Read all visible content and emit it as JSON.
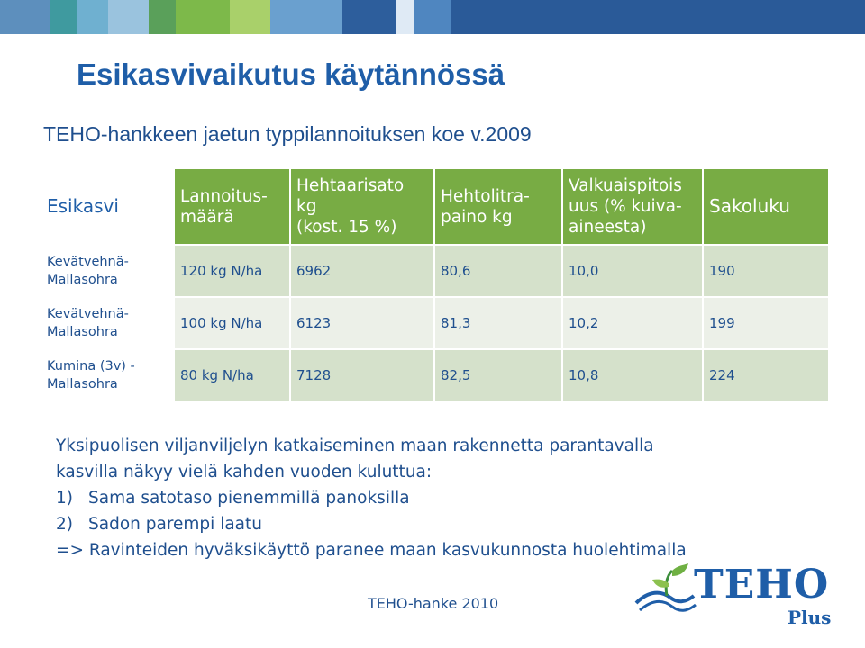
{
  "slide": {
    "title": "Esikasvivaikutus käytännössä",
    "subtitle": "TEHO-hankkeen jaetun typpilannoituksen koe v.2009"
  },
  "table": {
    "headers": [
      {
        "lines": [
          "Esikasvi"
        ]
      },
      {
        "lines": [
          "Lannoitus-",
          "määrä"
        ]
      },
      {
        "lines": [
          "Hehtaarisato",
          "kg",
          "(kost. 15 %)"
        ]
      },
      {
        "lines": [
          "Hehtolitra-",
          "paino kg"
        ]
      },
      {
        "lines": [
          "Valkuaispitois",
          "uus (% kuiva-",
          "aineesta)"
        ]
      },
      {
        "lines": [
          "Sakoluku"
        ]
      }
    ],
    "rows": [
      {
        "esikasvi": [
          "Kevätvehnä-",
          "Mallasohra"
        ],
        "lannoitus": "120 kg N/ha",
        "sato": "6962",
        "hehtolitrapaino": "80,6",
        "valkuainen": "10,0",
        "sakoluku": "190"
      },
      {
        "esikasvi": [
          "Kevätvehnä-",
          "Mallasohra"
        ],
        "lannoitus": "100 kg N/ha",
        "sato": "6123",
        "hehtolitrapaino": "81,3",
        "valkuainen": "10,2",
        "sakoluku": "199"
      },
      {
        "esikasvi": [
          "Kumina (3v) -",
          "Mallasohra"
        ],
        "lannoitus": "80 kg N/ha",
        "sato": "7128",
        "hehtolitrapaino": "82,5",
        "valkuainen": "10,8",
        "sakoluku": "224"
      }
    ]
  },
  "body": {
    "intro_line1": "Yksipuolisen viljanviljelyn katkaiseminen maan rakennetta parantavalla",
    "intro_line2": "kasvilla näkyy vielä kahden vuoden kuluttua:",
    "items": [
      {
        "num": "1)",
        "text": "Sama satotaso pienemmillä panoksilla"
      },
      {
        "num": "2)",
        "text": "Sadon parempi laatu"
      }
    ],
    "conclusion": "=> Ravinteiden hyväksikäyttö paranee maan kasvukunnosta huolehtimalla"
  },
  "footer": "TEHO-hanke 2010",
  "logo": {
    "word": "TEHO",
    "sub": "Plus",
    "icon": "sprout-logo-icon"
  },
  "colors": {
    "title": "#1f5ea8",
    "text": "#1f4f8e",
    "header_green": "#78ac44",
    "row_odd": "#d5e1cb",
    "row_even": "#ecf0e8"
  }
}
